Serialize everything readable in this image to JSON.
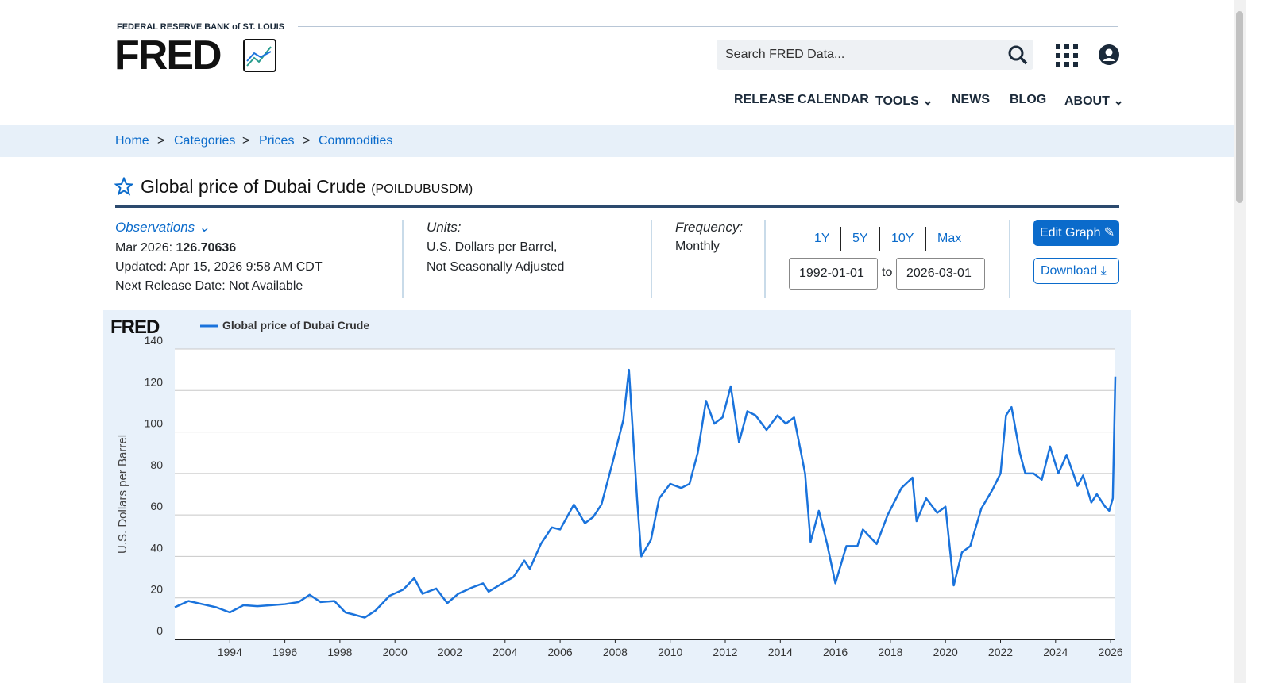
{
  "header": {
    "bank": "FEDERAL RESERVE BANK of ST. LOUIS",
    "logo": "FRED",
    "search_placeholder": "Search FRED Data...",
    "nav": [
      "RELEASE CALENDAR",
      "TOOLS",
      "NEWS",
      "BLOG",
      "ABOUT"
    ]
  },
  "breadcrumbs": [
    "Home",
    "Categories",
    "Prices",
    "Commodities"
  ],
  "series_title": "Global price of Dubai Crude",
  "series_id": "(POILDUBUSDM)",
  "observations": {
    "label": "Observations",
    "latest_date": "Mar 2026:",
    "latest_value": 126.70636,
    "updated": "Updated: Apr 15, 2026 9:58 AM CDT",
    "next_release": "Next Release Date: Not Available"
  },
  "units": {
    "label": "Units:",
    "line1": "U.S. Dollars per Barrel,",
    "line2": "Not Seasonally Adjusted"
  },
  "frequency": {
    "label": "Frequency:",
    "value": "Monthly"
  },
  "range_buttons": [
    "1Y",
    "5Y",
    "10Y",
    "Max"
  ],
  "date_range": {
    "start": "1992-01-01",
    "separator": "to",
    "end": "2026-03-01"
  },
  "buttons": {
    "edit": "Edit Graph",
    "download": "Download"
  },
  "chart_data": {
    "type": "line",
    "logo": "FRED",
    "y_label": "U.S. Dollars per Barrel",
    "x": [
      1992.0,
      1992.5,
      1993.0,
      1993.5,
      1994.0,
      1994.5,
      1995.0,
      1995.5,
      1996.0,
      1996.5,
      1996.9,
      1997.3,
      1997.8,
      1998.2,
      1998.5,
      1998.9,
      1999.3,
      1999.8,
      2000.3,
      2000.7,
      2001.0,
      2001.5,
      2001.9,
      2002.3,
      2002.8,
      2003.2,
      2003.4,
      2003.9,
      2004.3,
      2004.7,
      2004.9,
      2005.3,
      2005.7,
      2006.0,
      2006.5,
      2006.9,
      2007.2,
      2007.5,
      2007.9,
      2008.3,
      2008.5,
      2008.8,
      2008.95,
      2009.3,
      2009.6,
      2010.0,
      2010.4,
      2010.7,
      2011.0,
      2011.3,
      2011.6,
      2011.9,
      2012.2,
      2012.5,
      2012.8,
      2013.1,
      2013.5,
      2013.9,
      2014.2,
      2014.5,
      2014.9,
      2015.1,
      2015.4,
      2015.7,
      2016.0,
      2016.4,
      2016.8,
      2017.0,
      2017.5,
      2017.9,
      2018.4,
      2018.8,
      2018.95,
      2019.3,
      2019.7,
      2020.0,
      2020.3,
      2020.6,
      2020.9,
      2021.3,
      2021.7,
      2022.0,
      2022.2,
      2022.4,
      2022.7,
      2022.9,
      2023.2,
      2023.5,
      2023.8,
      2024.1,
      2024.4,
      2024.8,
      2025.0,
      2025.3,
      2025.5,
      2025.8,
      2025.95,
      2026.08,
      2026.17
    ],
    "series": [
      {
        "name": "Global price of Dubai Crude",
        "color": "#1a73dc",
        "values": [
          15.5,
          18.5,
          17,
          15.5,
          13,
          16.5,
          16,
          16.5,
          17,
          18,
          21.5,
          18,
          18.5,
          13,
          12,
          10.5,
          14,
          21,
          24,
          29.5,
          22,
          24.5,
          17.5,
          22,
          25,
          27,
          23,
          27,
          30,
          38,
          34,
          46,
          54,
          53,
          65,
          56,
          59,
          65,
          85,
          106,
          130,
          67,
          40,
          48,
          68,
          75,
          73,
          75,
          90,
          115,
          104,
          107,
          122,
          95,
          110,
          108,
          101,
          108,
          104,
          107,
          80,
          47,
          62,
          46,
          27,
          45,
          45,
          53,
          46,
          60,
          73,
          78,
          57,
          68,
          61,
          64,
          26,
          42,
          45,
          63,
          72,
          80,
          108,
          112,
          90,
          80,
          80,
          77,
          93,
          80,
          89,
          74,
          79,
          66,
          70,
          64,
          62,
          68,
          126.70636
        ]
      }
    ],
    "xlim": [
      1992,
      2026.17
    ],
    "xticks": [
      1994,
      1996,
      1998,
      2000,
      2002,
      2004,
      2006,
      2008,
      2010,
      2012,
      2014,
      2016,
      2018,
      2020,
      2022,
      2024,
      2026
    ],
    "ylim": [
      0,
      140
    ],
    "yticks": [
      0,
      20,
      40,
      60,
      80,
      100,
      120,
      140
    ],
    "grid": true
  }
}
